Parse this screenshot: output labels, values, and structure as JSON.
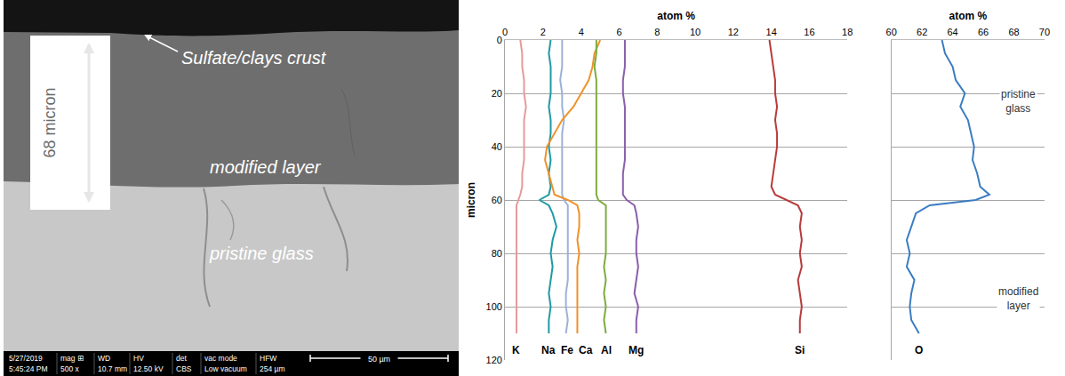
{
  "image_panel": {
    "thickness_label": "68 micron",
    "labels": {
      "crust": "Sulfate/clays crust",
      "modified": "modified layer",
      "pristine": "pristine glass"
    },
    "info_bar": [
      [
        "5/27/2019",
        "5:45:24 PM"
      ],
      [
        "mag ⊞",
        "500 x"
      ],
      [
        "WD",
        "10.7 mm"
      ],
      [
        "HV",
        "12.50 kV"
      ],
      [
        "det",
        "CBS"
      ],
      [
        "vac mode",
        "Low vacuum"
      ],
      [
        "HFW",
        "254 µm"
      ]
    ],
    "scale_bar": "50 µm"
  },
  "chart_data": [
    {
      "type": "line",
      "xlabel": "atom %",
      "ylabel": "micron",
      "xlim": [
        0,
        18
      ],
      "xticks": [
        0,
        2,
        4,
        6,
        8,
        10,
        12,
        14,
        16,
        18
      ],
      "ylim": [
        120,
        0
      ],
      "yticks": [
        0,
        20,
        40,
        60,
        80,
        100,
        120
      ],
      "grid": true,
      "y": [
        0,
        5,
        10,
        15,
        20,
        25,
        30,
        35,
        40,
        45,
        50,
        55,
        58,
        60,
        62,
        65,
        70,
        75,
        80,
        85,
        90,
        95,
        100,
        105,
        110
      ],
      "series": [
        {
          "name": "K",
          "color": "#e59a9c",
          "values": [
            0.8,
            0.9,
            0.9,
            1.0,
            1.0,
            1.1,
            1.0,
            1.0,
            1.0,
            1.0,
            0.9,
            0.9,
            0.8,
            0.7,
            0.6,
            0.6,
            0.6,
            0.6,
            0.6,
            0.6,
            0.6,
            0.6,
            0.6,
            0.6,
            0.6
          ]
        },
        {
          "name": "Na",
          "color": "#1f9aa3",
          "values": [
            2.4,
            2.3,
            2.4,
            2.4,
            2.4,
            2.3,
            2.4,
            2.4,
            2.3,
            2.4,
            2.3,
            2.4,
            2.3,
            1.8,
            2.3,
            2.5,
            2.7,
            2.5,
            2.4,
            2.5,
            2.4,
            2.3,
            2.4,
            2.3,
            2.3
          ]
        },
        {
          "name": "Fe",
          "color": "#9cb2d8",
          "values": [
            3.0,
            3.0,
            3.0,
            2.9,
            3.0,
            3.0,
            3.1,
            3.0,
            3.0,
            3.0,
            3.0,
            3.0,
            3.0,
            3.1,
            3.3,
            3.3,
            3.3,
            3.3,
            3.3,
            3.3,
            3.3,
            3.2,
            3.2,
            3.3,
            3.2
          ]
        },
        {
          "name": "Ca",
          "color": "#f0922b",
          "values": [
            5.0,
            4.7,
            4.6,
            4.4,
            4.0,
            3.6,
            3.0,
            2.6,
            2.2,
            2.1,
            2.3,
            2.5,
            2.6,
            3.3,
            3.8,
            3.9,
            3.9,
            3.8,
            3.9,
            3.8,
            3.8,
            3.8,
            3.8,
            3.8,
            3.8
          ]
        },
        {
          "name": "Al",
          "color": "#7dac3f",
          "values": [
            4.8,
            4.8,
            4.7,
            4.8,
            4.8,
            4.8,
            4.8,
            4.8,
            4.8,
            4.8,
            4.8,
            4.8,
            4.8,
            4.9,
            5.3,
            5.3,
            5.3,
            5.3,
            5.3,
            5.2,
            5.3,
            5.2,
            5.3,
            5.2,
            5.3
          ]
        },
        {
          "name": "Mg",
          "color": "#8a5ea8",
          "values": [
            6.3,
            6.3,
            6.3,
            6.2,
            6.2,
            6.3,
            6.3,
            6.3,
            6.3,
            6.3,
            6.2,
            6.2,
            6.2,
            6.4,
            6.8,
            6.9,
            7.0,
            6.9,
            6.9,
            7.0,
            6.9,
            6.8,
            7.0,
            6.9,
            6.9
          ]
        },
        {
          "name": "Si",
          "color": "#b83b3b",
          "values": [
            13.9,
            14.0,
            14.1,
            14.2,
            14.2,
            14.3,
            14.2,
            14.3,
            14.3,
            14.2,
            14.1,
            14.0,
            14.2,
            14.8,
            15.4,
            15.6,
            15.5,
            15.6,
            15.5,
            15.6,
            15.4,
            15.5,
            15.6,
            15.5,
            15.5
          ]
        }
      ]
    },
    {
      "type": "line",
      "xlabel": "atom %",
      "xlim": [
        60,
        70
      ],
      "xticks": [
        60,
        62,
        64,
        66,
        68,
        70
      ],
      "ylim": [
        120,
        0
      ],
      "yticks": [
        0,
        20,
        40,
        60,
        80,
        100,
        120
      ],
      "grid": true,
      "tick_labels": "x",
      "y": [
        0,
        5,
        10,
        15,
        20,
        25,
        30,
        35,
        40,
        45,
        50,
        55,
        58,
        60,
        62,
        65,
        70,
        75,
        80,
        85,
        90,
        95,
        100,
        105,
        110
      ],
      "series": [
        {
          "name": "O",
          "color": "#3b7cc2",
          "values": [
            63.3,
            63.5,
            64.0,
            64.2,
            64.8,
            64.5,
            65.0,
            65.2,
            65.4,
            65.3,
            65.6,
            65.8,
            66.4,
            65.5,
            62.5,
            61.6,
            61.3,
            61.0,
            61.2,
            61.0,
            61.5,
            61.3,
            61.2,
            61.3,
            61.8
          ]
        }
      ],
      "annotations": [
        {
          "text": "pristine glass",
          "x": 68.3,
          "y": 23
        },
        {
          "text": "modified layer",
          "x": 68.3,
          "y": 97
        }
      ]
    }
  ]
}
